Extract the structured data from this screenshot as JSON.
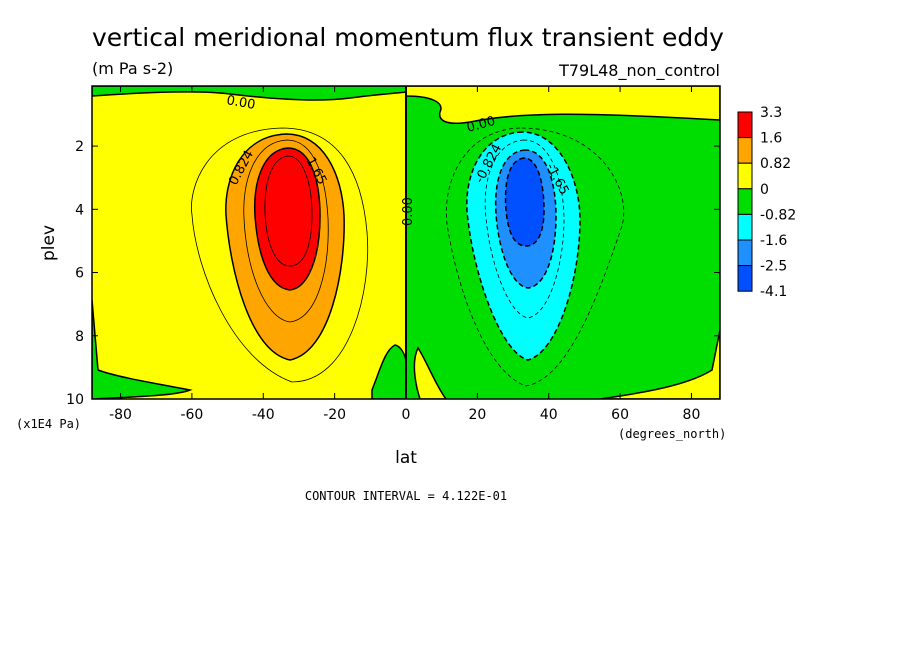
{
  "chart_data": {
    "type": "heatmap",
    "title": "vertical meridional momentum flux transient eddy",
    "units": "(m Pa s-2)",
    "run_label": "T79L48_non_control",
    "xlabel": "lat",
    "x_units": "(degrees_north)",
    "ylabel": "plev",
    "y_units": "(x1E4 Pa)",
    "xlim": [
      -88,
      88
    ],
    "ylim": [
      10,
      0.1
    ],
    "y_reversed": true,
    "x_ticks": [
      -80,
      -60,
      -40,
      -20,
      0,
      20,
      40,
      60,
      80
    ],
    "x_tick_labels": [
      "-80",
      "-60",
      "-40",
      "-20",
      "0",
      "20",
      "40",
      "60",
      "80"
    ],
    "y_ticks": [
      2,
      4,
      6,
      8,
      10
    ],
    "y_tick_labels": [
      "2",
      "4",
      "6",
      "8",
      "10"
    ],
    "contour_interval_text": "CONTOUR INTERVAL = 4.122E-01",
    "contour_labels": [
      "0.00",
      "0.00",
      "0.00",
      "0.824",
      "1.65",
      "-0.824",
      "-1.65"
    ],
    "colorbar": {
      "levels": [
        "3.3",
        "1.6",
        "0.82",
        "0",
        "-0.82",
        "-1.6",
        "-2.5",
        "-4.1"
      ],
      "colors": [
        "#ff0000",
        "#ffa500",
        "#ffff00",
        "#00dd00",
        "#00ffff",
        "#1e90ff",
        "#0050ff"
      ]
    },
    "features": [
      {
        "name": "southern-positive-maximum",
        "lat": -34,
        "plev": 3.8,
        "value": 3.3
      },
      {
        "name": "northern-negative-minimum",
        "lat": 33,
        "plev": 4.0,
        "value": -4.1
      }
    ],
    "grid": false
  }
}
